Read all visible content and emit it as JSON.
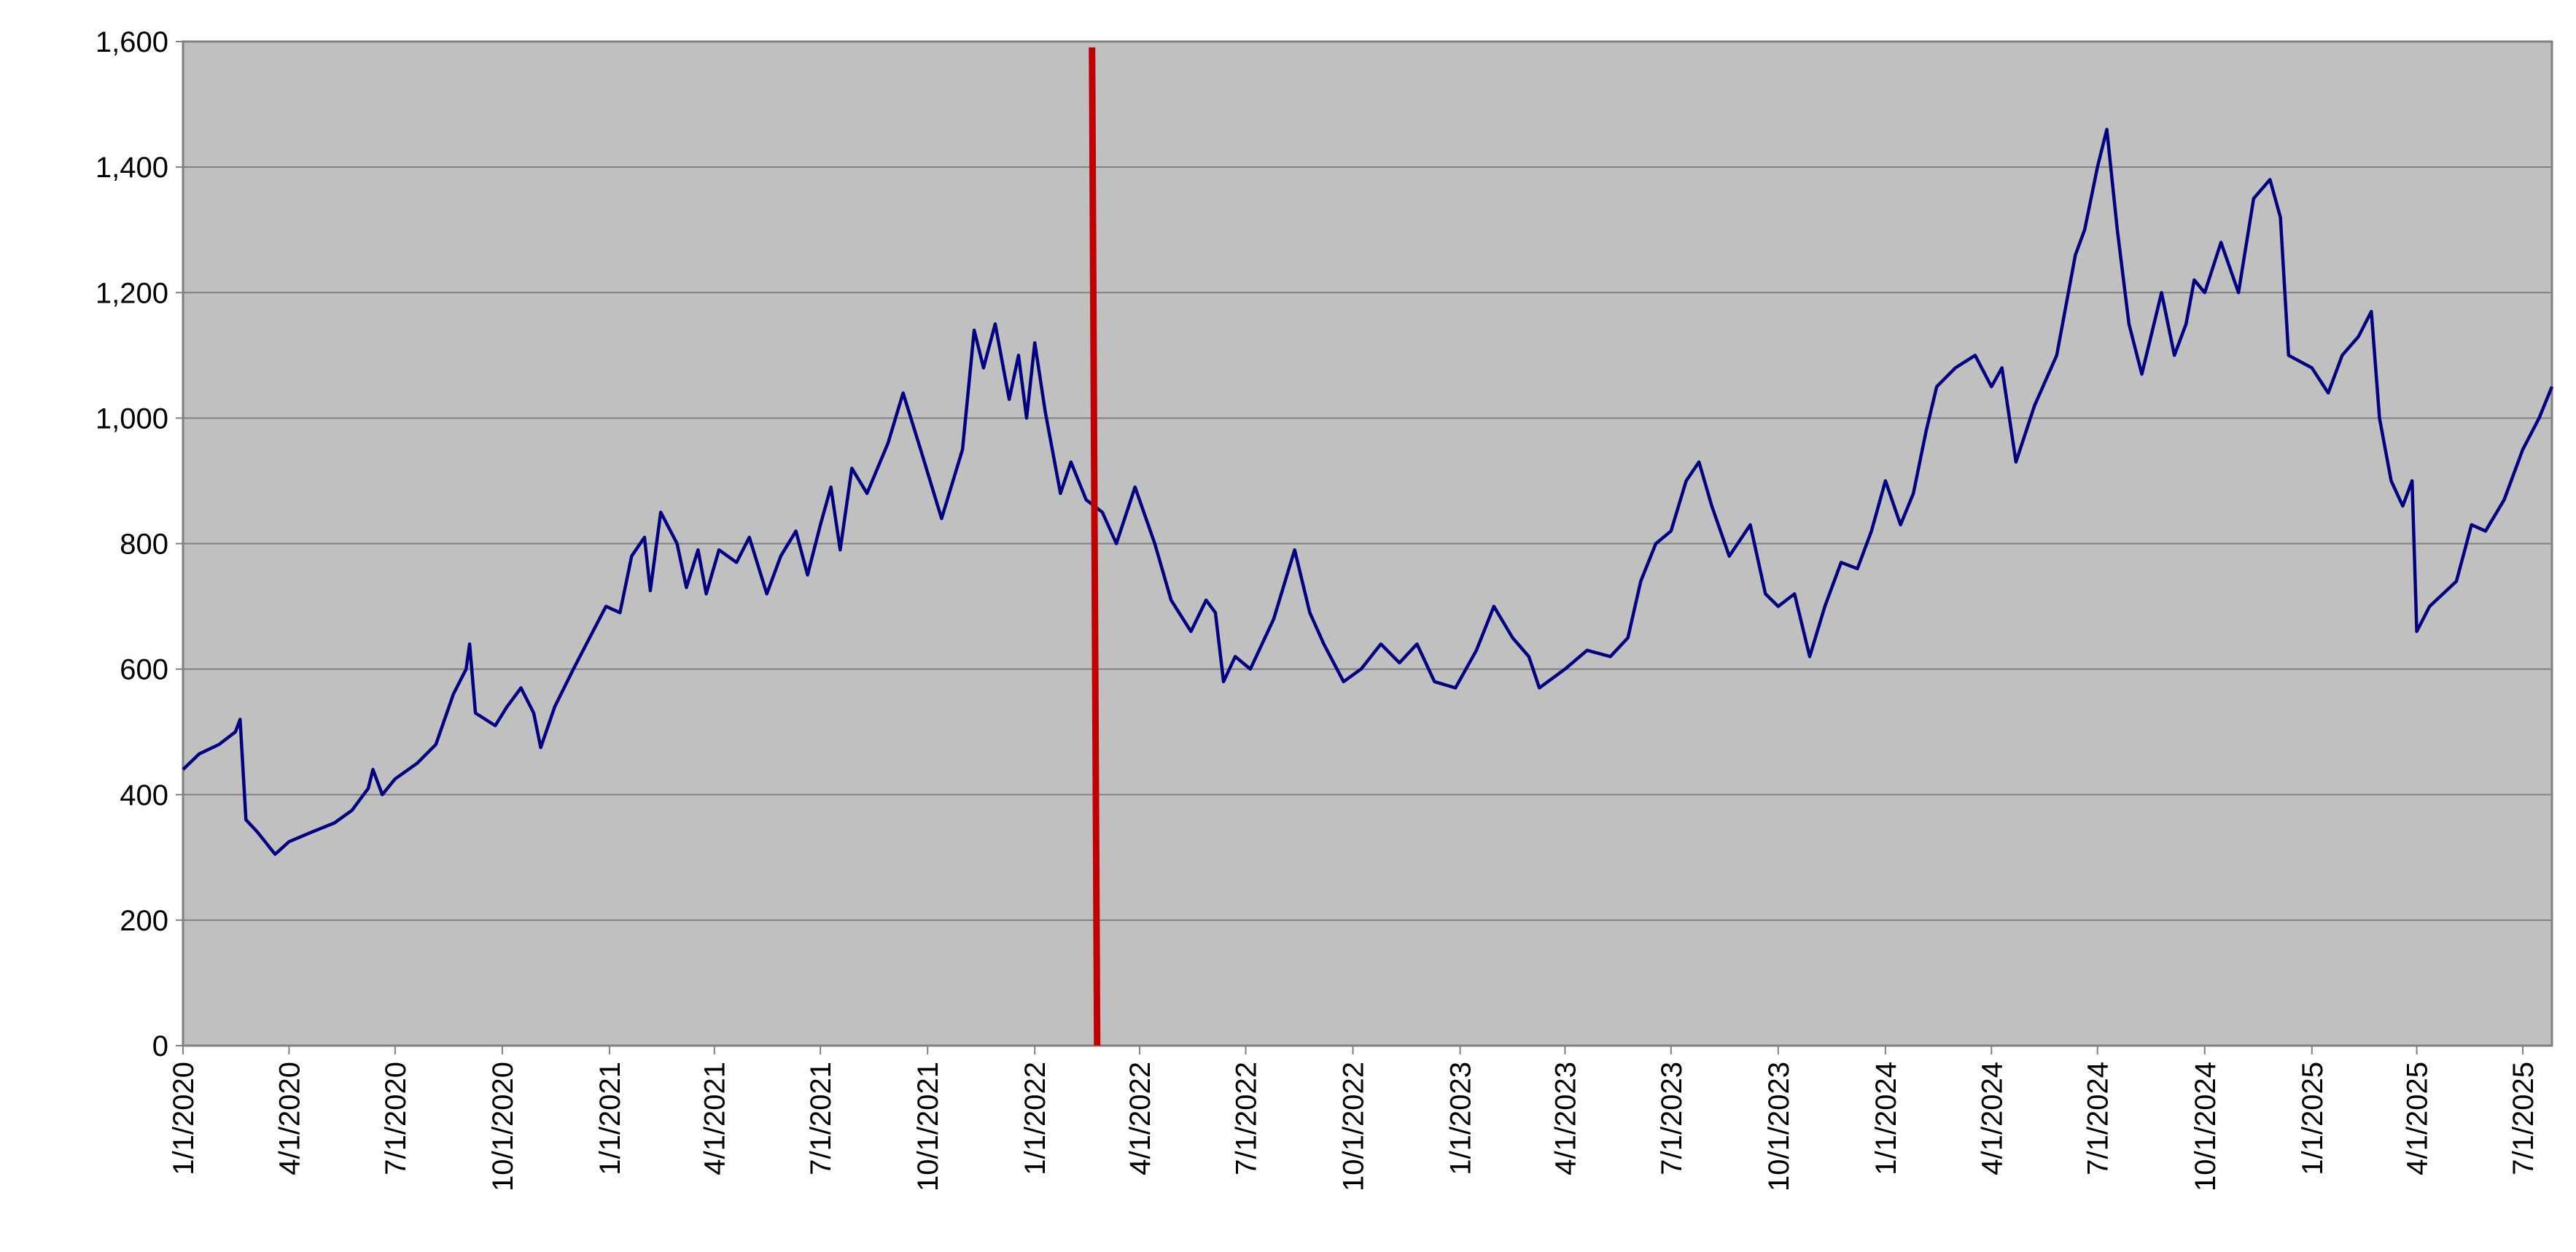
{
  "chart_data": {
    "type": "line",
    "color": "#000080",
    "plot_background": "#c0c0c0",
    "grid": true,
    "x": [
      "1/1/2020",
      "1/15/2020",
      "2/1/2020",
      "2/15/2020",
      "2/19/2020",
      "2/24/2020",
      "3/5/2020",
      "3/20/2020",
      "4/1/2020",
      "4/20/2020",
      "5/10/2020",
      "5/25/2020",
      "6/8/2020",
      "6/12/2020",
      "6/20/2020",
      "7/1/2020",
      "7/20/2020",
      "8/5/2020",
      "8/20/2020",
      "8/31/2020",
      "9/3/2020",
      "9/8/2020",
      "9/25/2020",
      "10/5/2020",
      "10/17/2020",
      "10/28/2020",
      "11/3/2020",
      "11/15/2020",
      "12/1/2020",
      "12/15/2020",
      "12/29/2020",
      "1/10/2021",
      "1/20/2021",
      "1/31/2021",
      "2/5/2021",
      "2/14/2021",
      "2/28/2021",
      "3/8/2021",
      "3/18/2021",
      "3/25/2021",
      "4/5/2021",
      "4/20/2021",
      "5/1/2021",
      "5/16/2021",
      "5/28/2021",
      "6/10/2021",
      "6/20/2021",
      "7/1/2021",
      "7/10/2021",
      "7/18/2021",
      "7/28/2021",
      "8/10/2021",
      "8/28/2021",
      "9/10/2021",
      "9/25/2021",
      "10/13/2021",
      "10/31/2021",
      "11/10/2021",
      "11/18/2021",
      "11/28/2021",
      "12/10/2021",
      "12/18/2021",
      "12/25/2021",
      "1/1/2022",
      "1/10/2022",
      "1/23/2022",
      "2/1/2022",
      "2/14/2022",
      "2/28/2022",
      "3/12/2022",
      "3/28/2022",
      "4/14/2022",
      "4/28/2022",
      "5/15/2022",
      "5/28/2022",
      "6/5/2022",
      "6/12/2022",
      "6/22/2022",
      "7/5/2022",
      "7/25/2022",
      "8/12/2022",
      "8/25/2022",
      "9/6/2022",
      "9/23/2022",
      "10/8/2022",
      "10/25/2022",
      "11/10/2022",
      "11/25/2022",
      "12/10/2022",
      "12/28/2022",
      "1/15/2023",
      "1/30/2023",
      "2/15/2023",
      "3/1/2023",
      "3/10/2023",
      "4/1/2023",
      "4/20/2023",
      "5/10/2023",
      "5/25/2023",
      "6/5/2023",
      "6/18/2023",
      "7/1/2023",
      "7/14/2023",
      "7/25/2023",
      "8/5/2023",
      "8/20/2023",
      "9/7/2023",
      "9/20/2023",
      "10/1/2023",
      "10/15/2023",
      "10/28/2023",
      "11/10/2023",
      "11/24/2023",
      "12/8/2023",
      "12/20/2023",
      "1/1/2024",
      "1/14/2024",
      "1/25/2024",
      "2/5/2024",
      "2/14/2024",
      "3/1/2024",
      "3/18/2024",
      "4/1/2024",
      "4/10/2024",
      "4/22/2024",
      "5/8/2024",
      "5/27/2024",
      "6/12/2024",
      "6/20/2024",
      "7/1/2024",
      "7/9/2024",
      "7/18/2024",
      "7/28/2024",
      "8/8/2024",
      "8/25/2024",
      "9/5/2024",
      "9/15/2024",
      "9/22/2024",
      "10/1/2024",
      "10/15/2024",
      "10/30/2024",
      "11/12/2024",
      "11/26/2024",
      "12/5/2024",
      "12/12/2024",
      "1/1/2025",
      "1/15/2025",
      "1/27/2025",
      "2/10/2025",
      "2/21/2025",
      "2/28/2025",
      "3/10/2025",
      "3/20/2025",
      "3/28/2025",
      "4/1/2025",
      "4/12/2025",
      "5/5/2025",
      "5/18/2025",
      "5/30/2025",
      "6/15/2025",
      "7/1/2025",
      "7/15/2025",
      "7/26/2025"
    ],
    "values": [
      440,
      465,
      480,
      500,
      520,
      360,
      340,
      305,
      325,
      340,
      355,
      375,
      410,
      440,
      400,
      425,
      450,
      480,
      560,
      600,
      640,
      530,
      510,
      540,
      570,
      530,
      475,
      540,
      600,
      650,
      700,
      690,
      780,
      810,
      725,
      850,
      800,
      730,
      790,
      720,
      790,
      770,
      810,
      720,
      780,
      820,
      750,
      830,
      890,
      790,
      920,
      880,
      960,
      1040,
      950,
      840,
      950,
      1140,
      1080,
      1150,
      1030,
      1100,
      1000,
      1120,
      1010,
      880,
      930,
      870,
      850,
      800,
      890,
      800,
      710,
      660,
      710,
      690,
      580,
      620,
      600,
      680,
      790,
      690,
      640,
      580,
      600,
      640,
      610,
      640,
      580,
      570,
      630,
      700,
      650,
      620,
      570,
      600,
      630,
      620,
      650,
      740,
      800,
      820,
      900,
      930,
      860,
      780,
      830,
      720,
      700,
      720,
      620,
      700,
      770,
      760,
      820,
      900,
      830,
      880,
      980,
      1050,
      1080,
      1100,
      1050,
      1080,
      930,
      1020,
      1100,
      1260,
      1300,
      1400,
      1460,
      1300,
      1150,
      1070,
      1200,
      1100,
      1150,
      1220,
      1200,
      1280,
      1200,
      1350,
      1380,
      1320,
      1100,
      1080,
      1040,
      1100,
      1130,
      1170,
      1000,
      900,
      860,
      900,
      660,
      700,
      740,
      830,
      820,
      870,
      950,
      1000,
      1050
    ],
    "xlim": [
      "1/1/2020",
      "7/26/2025"
    ],
    "xticks": [
      "1/1/2020",
      "4/1/2020",
      "7/1/2020",
      "10/1/2020",
      "1/1/2021",
      "4/1/2021",
      "7/1/2021",
      "10/1/2021",
      "1/1/2022",
      "4/1/2022",
      "7/1/2022",
      "10/1/2022",
      "1/1/2023",
      "4/1/2023",
      "7/1/2023",
      "10/1/2023",
      "1/1/2024",
      "4/1/2024",
      "7/1/2024",
      "10/1/2024",
      "1/1/2025",
      "4/1/2025",
      "7/1/2025"
    ],
    "ylim": [
      0,
      1600
    ],
    "yticks": [
      0,
      200,
      400,
      600,
      800,
      {
        "value": 1000,
        "label": "1,000"
      },
      {
        "value": 1200,
        "label": "1,200"
      },
      {
        "value": 1400,
        "label": "1,400"
      },
      {
        "value": 1600,
        "label": "1,600"
      }
    ],
    "vertical_line": {
      "x": "2/21/2022",
      "color": "#c00000"
    }
  }
}
